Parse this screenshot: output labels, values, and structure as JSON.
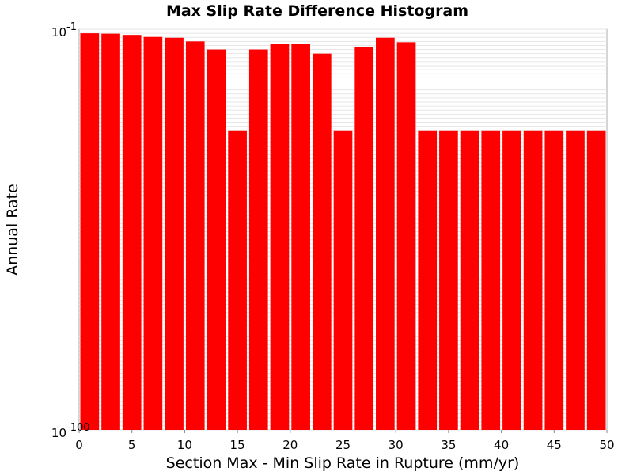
{
  "chart_data": {
    "type": "bar",
    "title": "Max Slip Rate Difference Histogram",
    "xlabel": "Section Max - Min Slip Rate in Rupture (mm/yr)",
    "ylabel": "Annual Rate",
    "xlim": [
      0,
      50
    ],
    "ylim_log10": [
      -100,
      -1
    ],
    "y_scale": "log",
    "bin_width": 2,
    "bar_color": "#ff0000",
    "grid": true,
    "x_ticks": [
      0,
      5,
      10,
      15,
      20,
      25,
      30,
      35,
      40,
      45,
      50
    ],
    "x_tick_labels": [
      "0",
      "5",
      "10",
      "15",
      "20",
      "25",
      "30",
      "35",
      "40",
      "45",
      "50"
    ],
    "y_tick_labels": [
      {
        "exp": -1,
        "base": "10",
        "label": "-1"
      },
      {
        "exp": -100,
        "base": "10",
        "label": "-100"
      }
    ],
    "bins": [
      {
        "x": 1,
        "log10_value": -2.0
      },
      {
        "x": 3,
        "log10_value": -2.1
      },
      {
        "x": 5,
        "log10_value": -2.4
      },
      {
        "x": 7,
        "log10_value": -2.9
      },
      {
        "x": 9,
        "log10_value": -3.1
      },
      {
        "x": 11,
        "log10_value": -4.0
      },
      {
        "x": 13,
        "log10_value": -6.0
      },
      {
        "x": 15,
        "log10_value": -26.0
      },
      {
        "x": 17,
        "log10_value": -6.0
      },
      {
        "x": 19,
        "log10_value": -4.6
      },
      {
        "x": 21,
        "log10_value": -4.6
      },
      {
        "x": 23,
        "log10_value": -7.0
      },
      {
        "x": 25,
        "log10_value": -26.0
      },
      {
        "x": 27,
        "log10_value": -5.5
      },
      {
        "x": 29,
        "log10_value": -3.1
      },
      {
        "x": 31,
        "log10_value": -4.2
      },
      {
        "x": 33,
        "log10_value": -26.0
      },
      {
        "x": 35,
        "log10_value": -26.0
      },
      {
        "x": 37,
        "log10_value": -26.0
      },
      {
        "x": 39,
        "log10_value": -26.0
      },
      {
        "x": 41,
        "log10_value": -26.0
      },
      {
        "x": 43,
        "log10_value": -26.0
      },
      {
        "x": 45,
        "log10_value": -26.0
      },
      {
        "x": 47,
        "log10_value": -26.0
      },
      {
        "x": 49,
        "log10_value": -26.0
      }
    ]
  }
}
